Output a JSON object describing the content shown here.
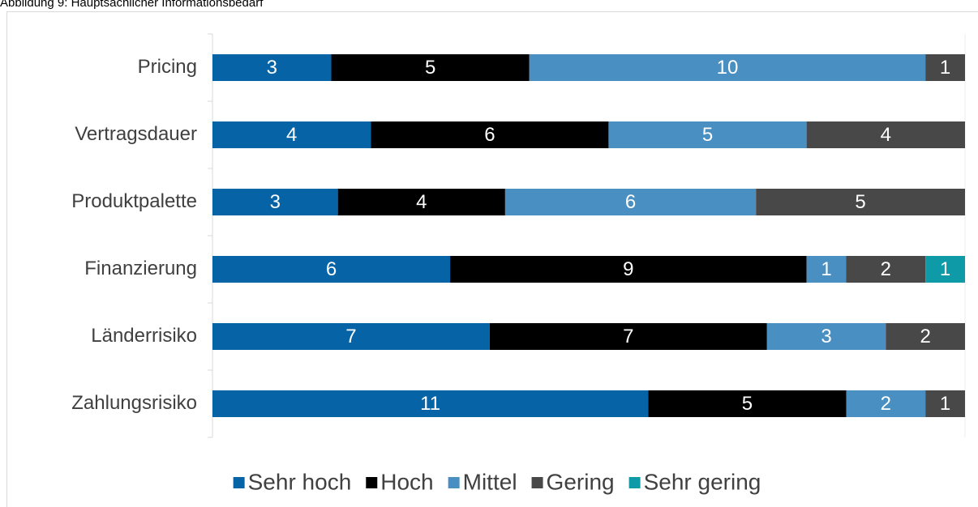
{
  "chart_data": {
    "type": "bar",
    "orientation": "horizontal",
    "stacking": "percent",
    "title": "Abbildung 9: Hauptsächlicher Informationsbedarf",
    "categories": [
      "Pricing",
      "Vertragsdauer",
      "Produktpalette",
      "Finanzierung",
      "Länderrisiko",
      "Zahlungsrisiko"
    ],
    "series": [
      {
        "name": "Sehr hoch",
        "color": "#0563a6",
        "values": [
          3,
          4,
          3,
          6,
          7,
          11
        ]
      },
      {
        "name": "Hoch",
        "color": "#000000",
        "values": [
          5,
          6,
          4,
          9,
          7,
          5
        ]
      },
      {
        "name": "Mittel",
        "color": "#4a8fc1",
        "values": [
          10,
          5,
          6,
          1,
          3,
          2
        ]
      },
      {
        "name": "Gering",
        "color": "#484848",
        "values": [
          1,
          4,
          5,
          2,
          2,
          1
        ]
      },
      {
        "name": "Sehr gering",
        "color": "#0f9aa8",
        "values": [
          0,
          0,
          0,
          1,
          0,
          0
        ]
      }
    ],
    "legend": "bottom"
  }
}
